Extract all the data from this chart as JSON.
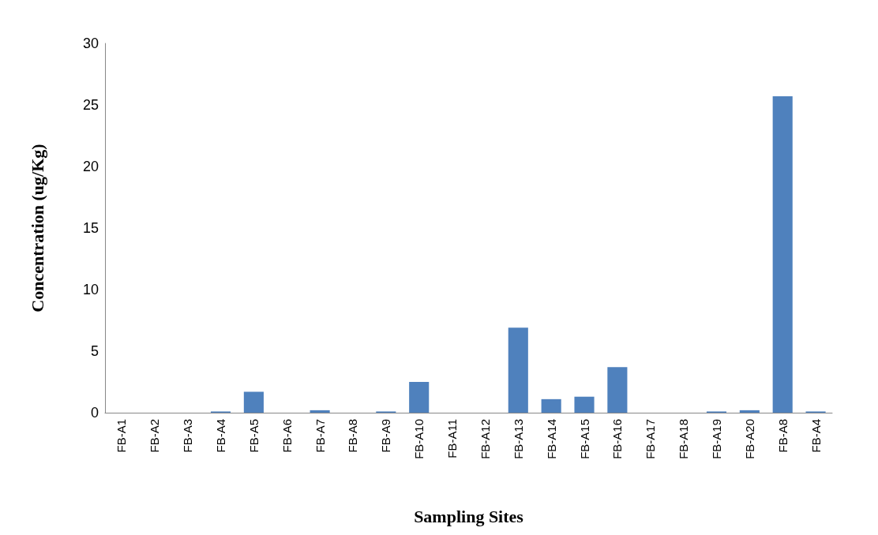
{
  "chart_data": {
    "type": "bar",
    "xlabel": "Sampling Sites",
    "ylabel": "Concentration (ug/Kg)",
    "categories": [
      "FB-A1",
      "FB-A2",
      "FB-A3",
      "FB-A4",
      "FB-A5",
      "FB-A6",
      "FB-A7",
      "FB-A8",
      "FB-A9",
      "FB-A10",
      "FB-A11",
      "FB-A12",
      "FB-A13",
      "FB-A14",
      "FB-A15",
      "FB-A16",
      "FB-A17",
      "FB-A18",
      "FB-A19",
      "FB-A20",
      "FB-A8",
      "FB-A4"
    ],
    "values": [
      0,
      0,
      0,
      0.1,
      1.7,
      0,
      0.2,
      0,
      0.1,
      2.5,
      0,
      0,
      6.9,
      1.1,
      1.3,
      3.7,
      0,
      0,
      0.1,
      0.2,
      25.7,
      0.1
    ],
    "color": "#4f81bd",
    "ylim": [
      0,
      30
    ],
    "yticks": [
      0,
      5,
      10,
      15,
      20,
      25,
      30
    ]
  }
}
